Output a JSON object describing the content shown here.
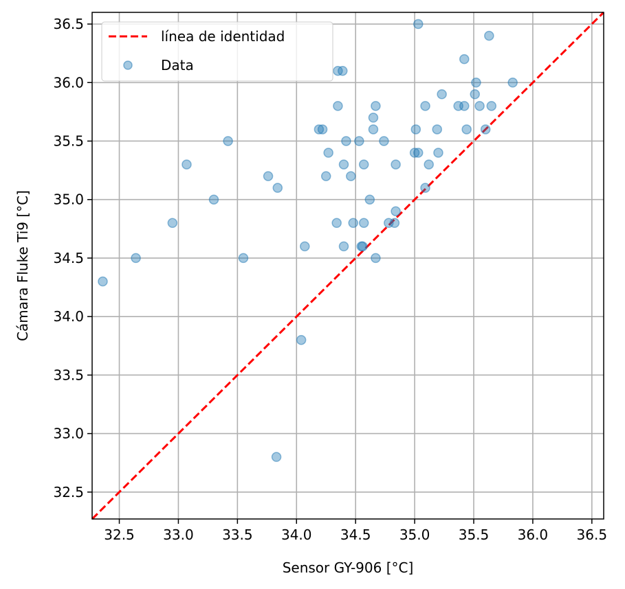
{
  "chart_data": {
    "type": "scatter",
    "title": "",
    "xlabel": "Sensor GY-906 [°C]",
    "ylabel": "Cámara Fluke Ti9 [°C]",
    "xlim": [
      32.27,
      36.6
    ],
    "ylim": [
      32.27,
      36.6
    ],
    "xticks": [
      "32.5",
      "33.0",
      "33.5",
      "34.0",
      "34.5",
      "35.0",
      "35.5",
      "36.0",
      "36.5"
    ],
    "yticks": [
      "32.5",
      "33.0",
      "33.5",
      "34.0",
      "34.5",
      "35.0",
      "35.5",
      "36.0",
      "36.5"
    ],
    "grid": true,
    "legend_position": "top-left",
    "colors": {
      "points": "#1f77b4",
      "identity": "#ff0000"
    },
    "identity_line": {
      "name": "línea de identidad",
      "style": "dashed"
    },
    "series": [
      {
        "name": "Data",
        "points": [
          [
            32.36,
            34.3
          ],
          [
            32.64,
            34.5
          ],
          [
            32.95,
            34.8
          ],
          [
            33.07,
            35.3
          ],
          [
            33.3,
            35.0
          ],
          [
            33.42,
            35.5
          ],
          [
            33.55,
            34.5
          ],
          [
            33.76,
            35.2
          ],
          [
            33.84,
            35.1
          ],
          [
            33.83,
            32.8
          ],
          [
            34.04,
            33.8
          ],
          [
            34.07,
            34.6
          ],
          [
            34.19,
            35.6
          ],
          [
            34.22,
            35.6
          ],
          [
            34.25,
            35.2
          ],
          [
            34.27,
            35.4
          ],
          [
            34.34,
            34.8
          ],
          [
            34.35,
            35.8
          ],
          [
            34.35,
            36.1
          ],
          [
            34.39,
            36.1
          ],
          [
            34.4,
            35.3
          ],
          [
            34.4,
            34.6
          ],
          [
            34.42,
            35.5
          ],
          [
            34.46,
            35.2
          ],
          [
            34.48,
            34.8
          ],
          [
            34.53,
            35.5
          ],
          [
            34.55,
            34.6
          ],
          [
            34.56,
            34.6
          ],
          [
            34.57,
            35.3
          ],
          [
            34.57,
            34.8
          ],
          [
            34.62,
            35.0
          ],
          [
            34.65,
            35.7
          ],
          [
            34.65,
            35.6
          ],
          [
            34.67,
            35.8
          ],
          [
            34.67,
            34.5
          ],
          [
            34.74,
            35.5
          ],
          [
            34.78,
            34.8
          ],
          [
            34.83,
            34.8
          ],
          [
            34.84,
            35.3
          ],
          [
            34.84,
            34.9
          ],
          [
            35.0,
            35.4
          ],
          [
            35.01,
            35.6
          ],
          [
            35.03,
            35.4
          ],
          [
            35.03,
            36.5
          ],
          [
            35.09,
            35.8
          ],
          [
            35.09,
            35.1
          ],
          [
            35.12,
            35.3
          ],
          [
            35.19,
            35.6
          ],
          [
            35.2,
            35.4
          ],
          [
            35.23,
            35.9
          ],
          [
            35.37,
            35.8
          ],
          [
            35.42,
            35.8
          ],
          [
            35.42,
            36.2
          ],
          [
            35.44,
            35.6
          ],
          [
            35.51,
            35.9
          ],
          [
            35.52,
            36.0
          ],
          [
            35.55,
            35.8
          ],
          [
            35.6,
            35.6
          ],
          [
            35.63,
            36.4
          ],
          [
            35.65,
            35.8
          ],
          [
            35.83,
            36.0
          ]
        ]
      }
    ]
  }
}
